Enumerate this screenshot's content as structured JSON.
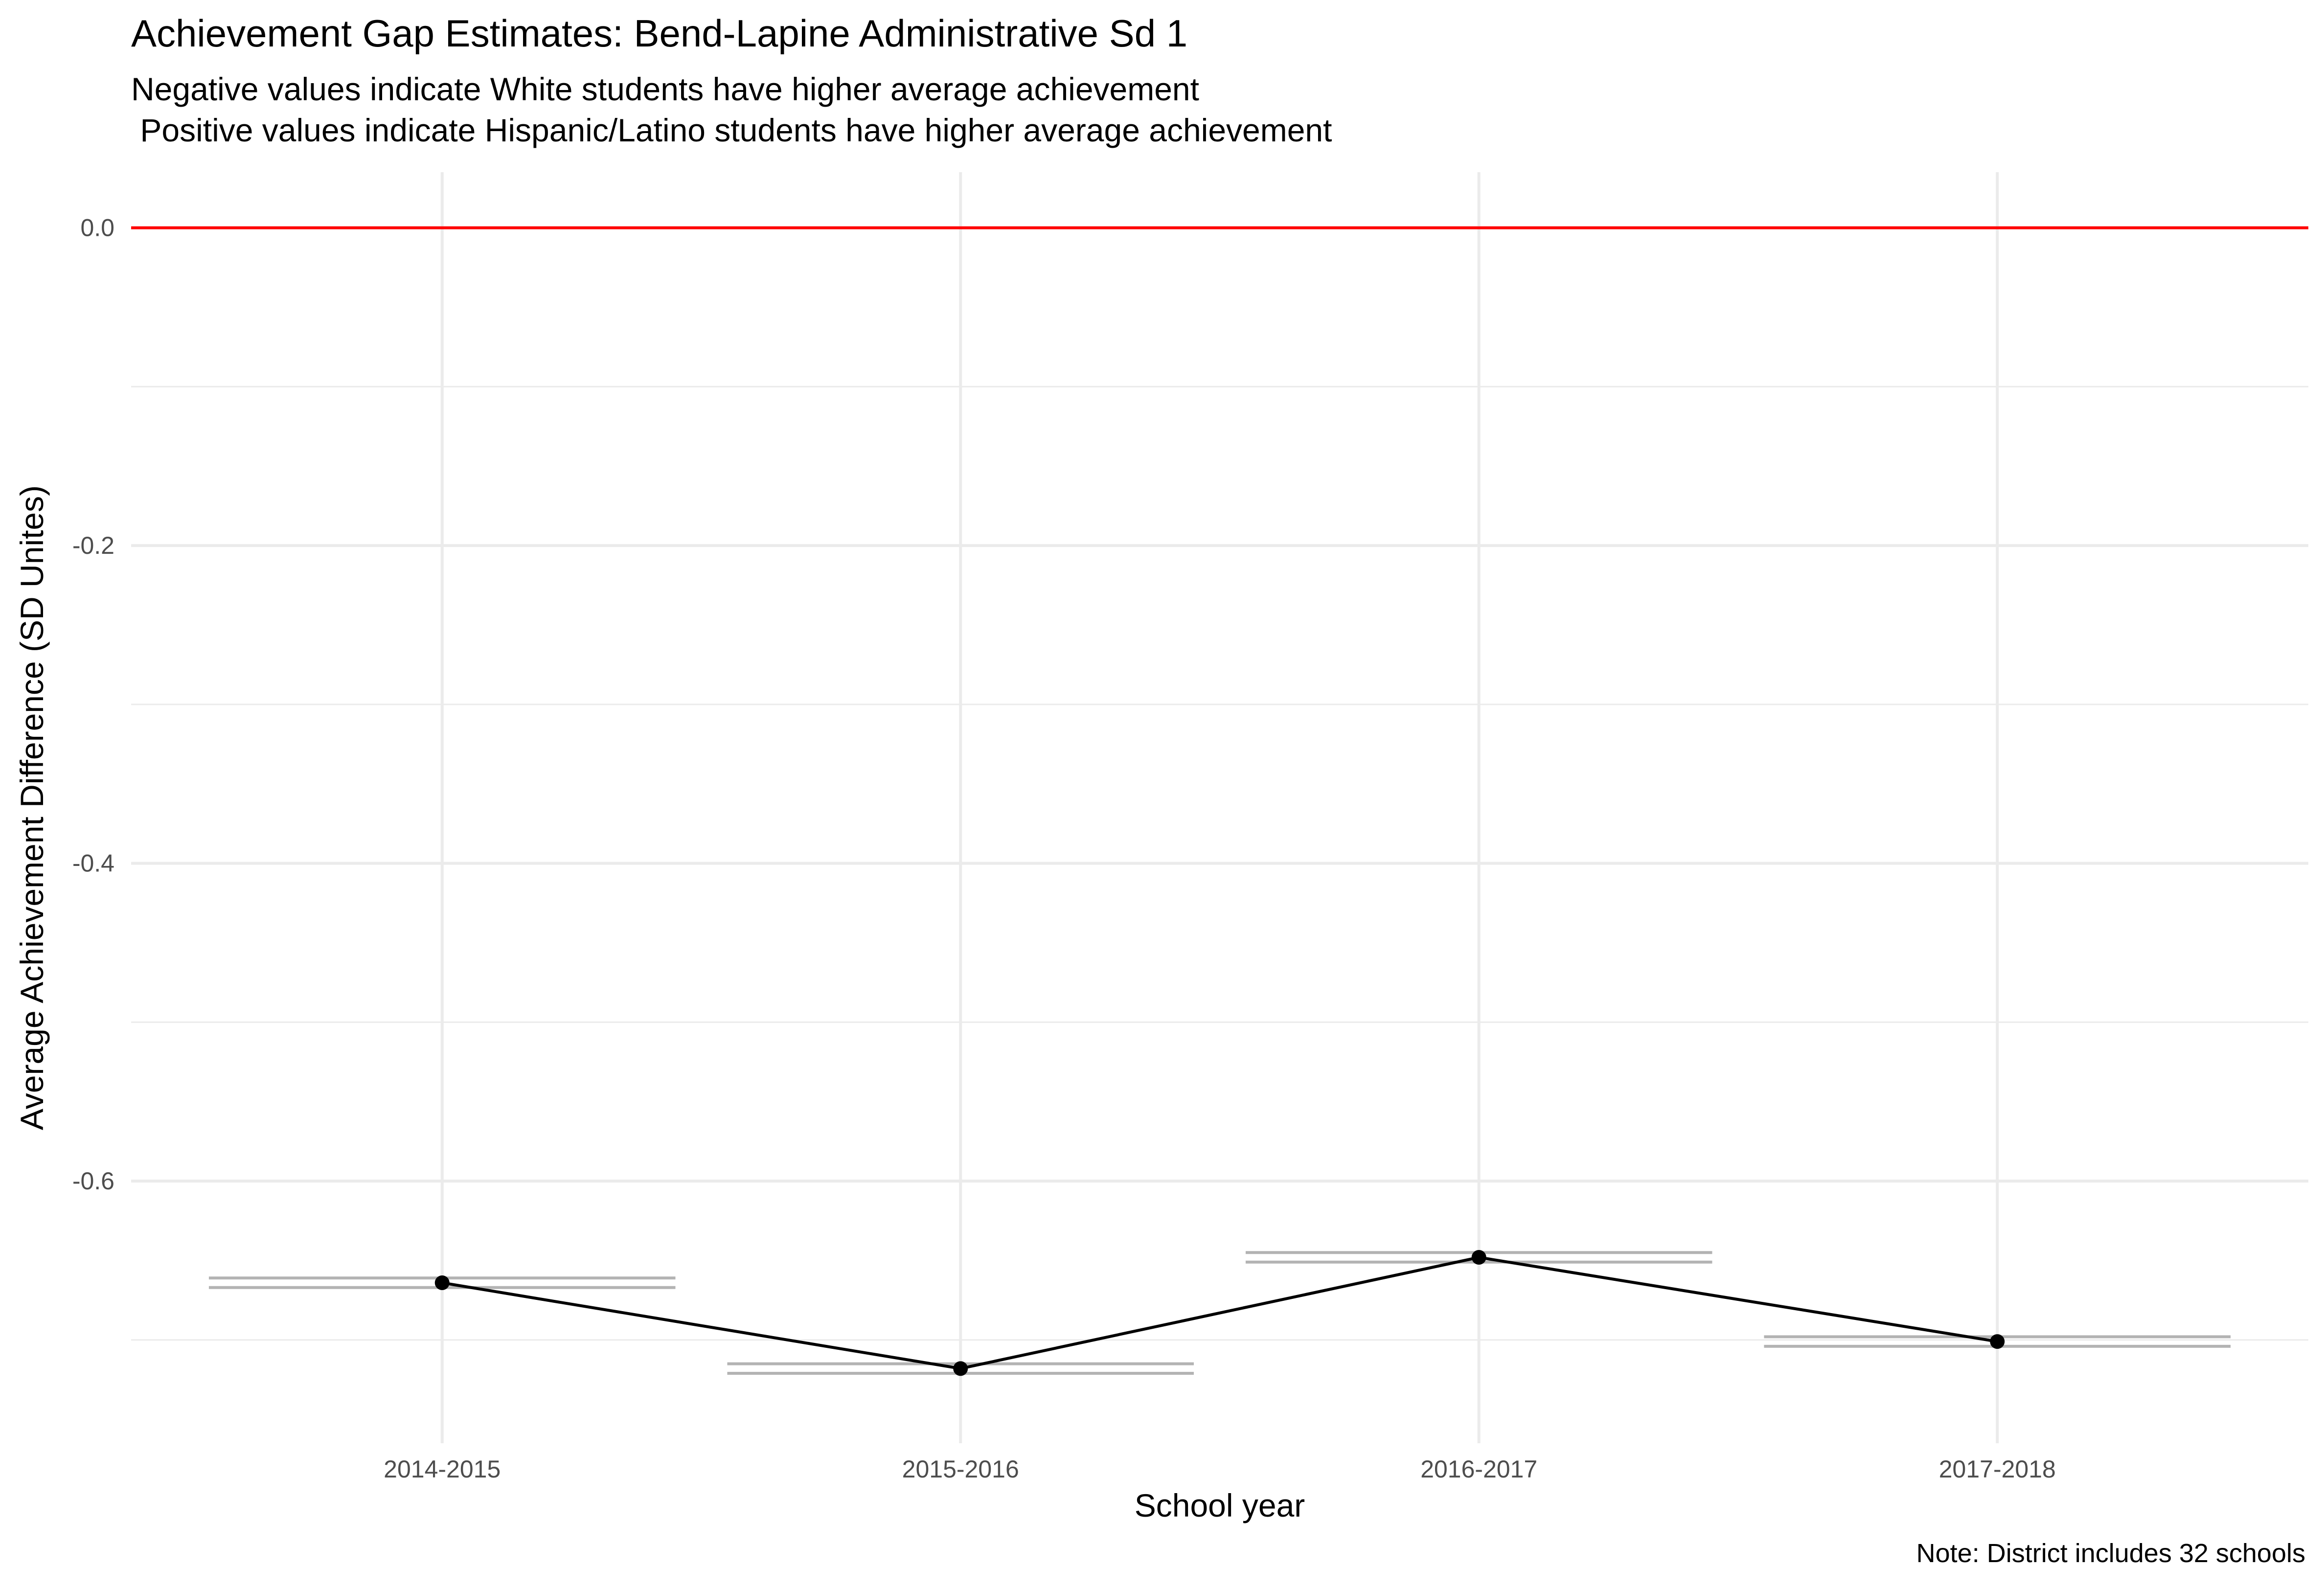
{
  "chart_data": {
    "type": "line",
    "title": "Achievement Gap Estimates: Bend-Lapine Administrative Sd 1",
    "subtitle_lines": [
      "Negative values indicate White students have higher average achievement",
      " Positive values indicate Hispanic/Latino students have higher average achievement"
    ],
    "xlabel": "School year",
    "ylabel": "Average Achievement Difference (SD Unites)",
    "caption": "Note: District includes 32 schools",
    "categories": [
      "2014-2015",
      "2015-2016",
      "2016-2017",
      "2017-2018"
    ],
    "series": [
      {
        "values": [
          -0.664,
          -0.718,
          -0.648,
          -0.701
        ],
        "interval_low": [
          -0.667,
          -0.721,
          -0.651,
          -0.704
        ],
        "interval_high": [
          -0.661,
          -0.715,
          -0.645,
          -0.698
        ]
      }
    ],
    "reference_line": {
      "y": 0.0,
      "color": "#ff0000"
    },
    "ylim": [
      -0.765,
      0.035
    ],
    "yticks": [
      0.0,
      -0.2,
      -0.4,
      -0.6
    ],
    "ytick_labels": [
      "0.0",
      "-0.2",
      "-0.4",
      "-0.6"
    ],
    "grid": true,
    "legend": "none",
    "colors": {
      "line": "#000000",
      "points": "#000000",
      "interval": "#b3b3b3",
      "grid": "#ebebeb"
    }
  }
}
